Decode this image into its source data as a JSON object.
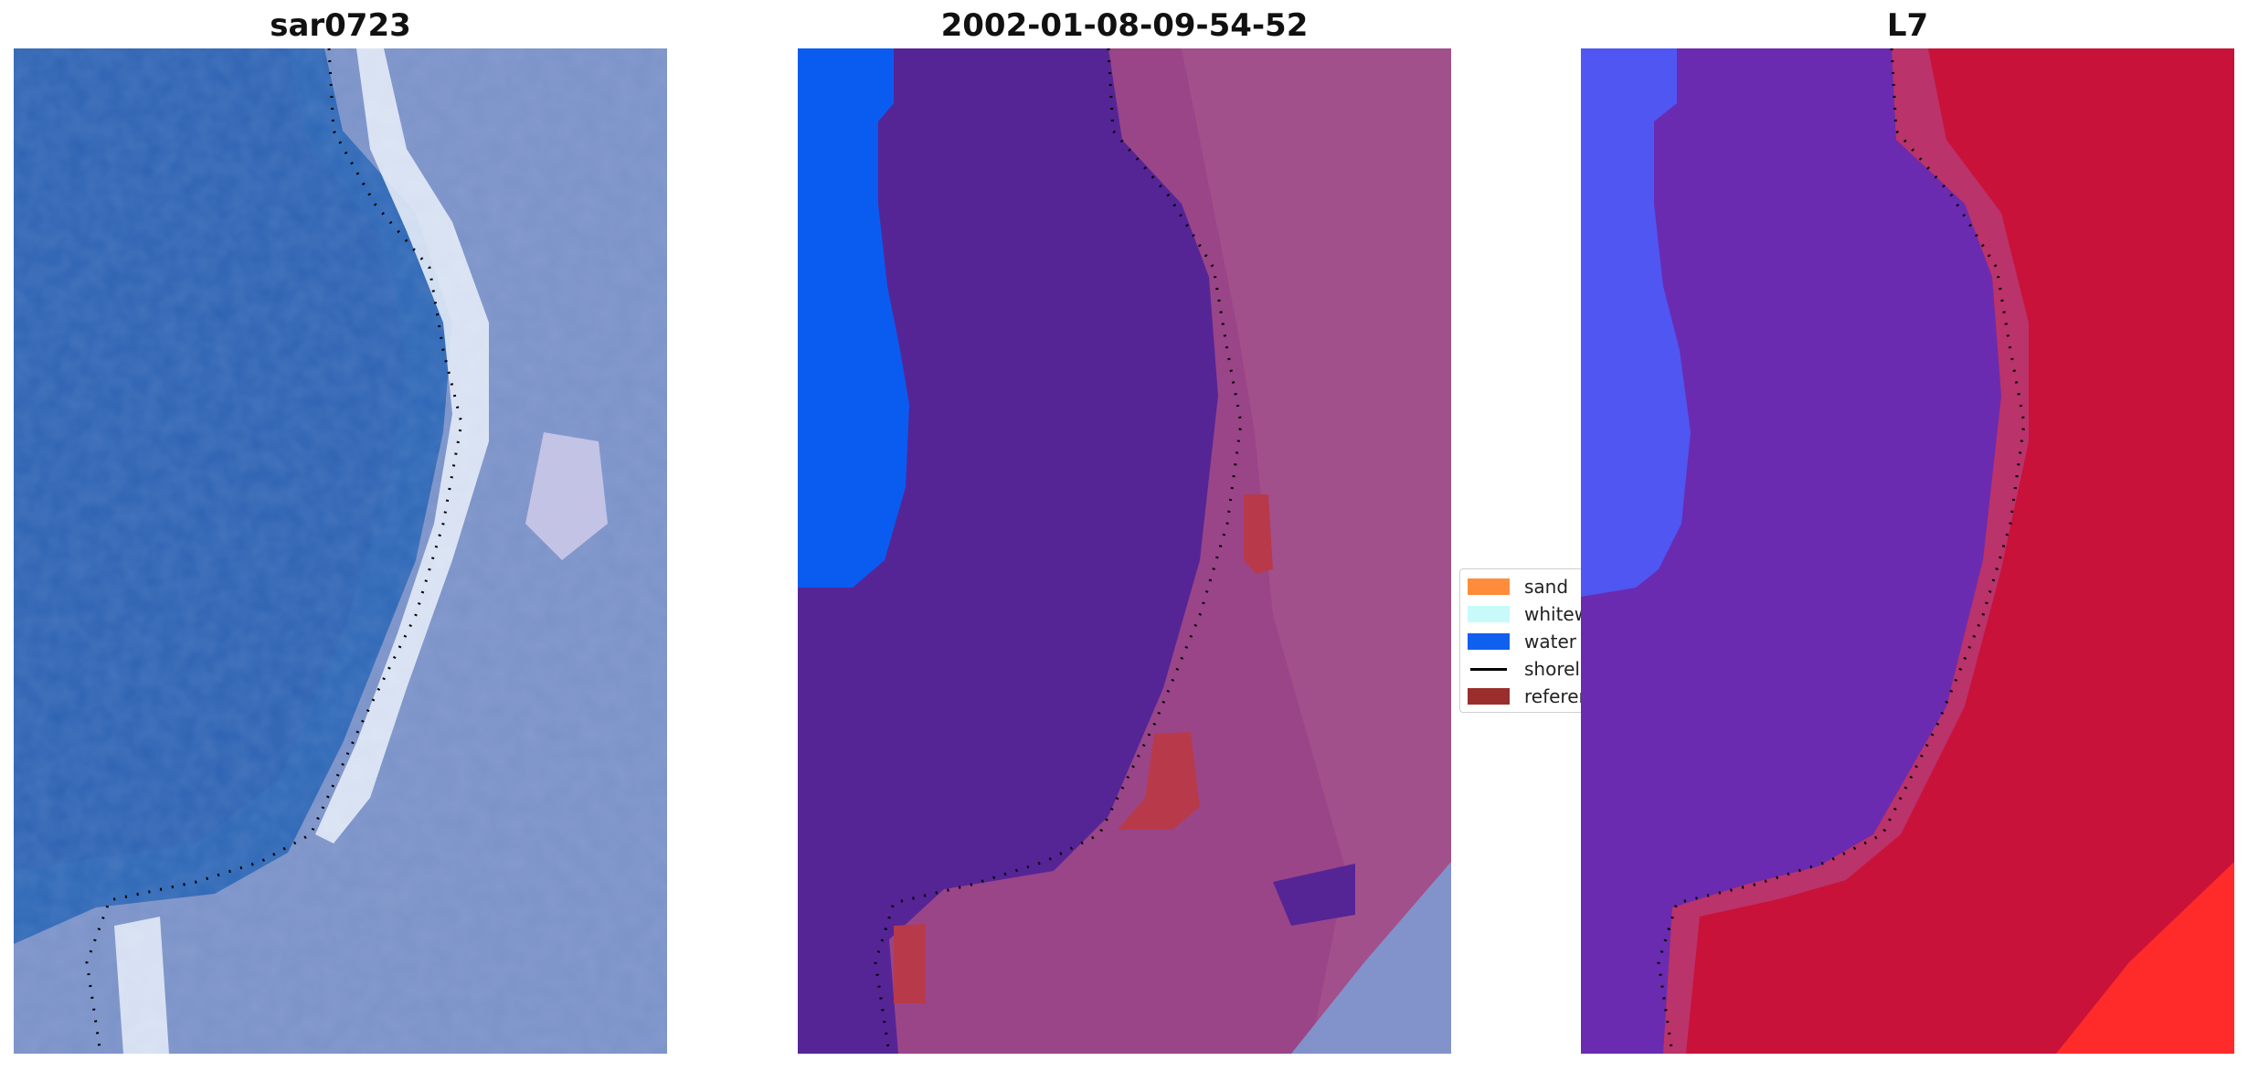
{
  "panels": [
    {
      "title": "sar0723"
    },
    {
      "title": "2002-01-08-09-54-52"
    },
    {
      "title": "L7"
    }
  ],
  "legend": {
    "items": [
      {
        "label": "sand",
        "color": "#ff8c3a"
      },
      {
        "label": "whitew",
        "color": "#c8fafa"
      },
      {
        "label": "water",
        "color": "#1060f0"
      },
      {
        "label": "shorel",
        "color": "#000000"
      },
      {
        "label": "referen",
        "color": "#9b2d2d"
      }
    ]
  },
  "colors": {
    "rgb_water": "#2c67b6",
    "rgb_land": "#7a92c8",
    "rgb_whitewater": "#e8eff8",
    "class_water": "#0a5cf0",
    "class_other": "#552596",
    "class_land": "#9a4588",
    "class_reference": "#b83a4a",
    "index_blue": "#4f56f2",
    "index_purple": "#6a2bb0",
    "index_red": "#c8123a",
    "index_bright_red": "#ff2a2a"
  }
}
